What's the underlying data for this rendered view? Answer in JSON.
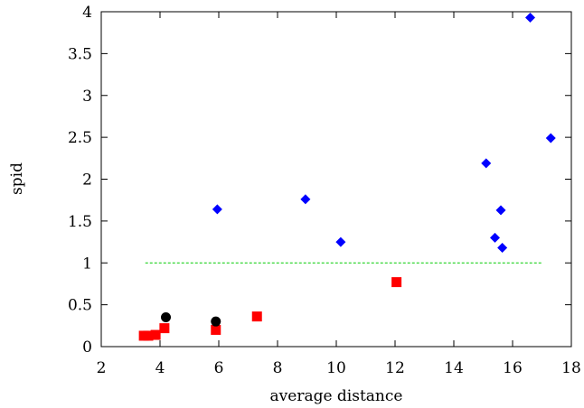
{
  "chart_data": {
    "type": "scatter",
    "xlabel": "average distance",
    "ylabel": "spid",
    "xlim": [
      2,
      18
    ],
    "ylim": [
      0,
      4
    ],
    "xticks": [
      2,
      4,
      6,
      8,
      10,
      12,
      14,
      16,
      18
    ],
    "yticks": [
      0,
      0.5,
      1,
      1.5,
      2,
      2.5,
      3,
      3.5,
      4
    ],
    "xtick_labels": [
      "2",
      "4",
      "6",
      "8",
      "10",
      "12",
      "14",
      "16",
      "18"
    ],
    "ytick_labels": [
      "0",
      "0.5",
      "1",
      "1.5",
      "2",
      "2.5",
      "3",
      "3.5",
      "4"
    ],
    "grid": false,
    "legend": "none",
    "series": [
      {
        "marker": "diamond",
        "color": "#0000ff",
        "points": [
          {
            "x": 5.95,
            "y": 1.64
          },
          {
            "x": 8.95,
            "y": 1.76
          },
          {
            "x": 10.15,
            "y": 1.25
          },
          {
            "x": 15.1,
            "y": 2.19
          },
          {
            "x": 15.4,
            "y": 1.3
          },
          {
            "x": 15.6,
            "y": 1.63
          },
          {
            "x": 15.65,
            "y": 1.18
          },
          {
            "x": 16.6,
            "y": 3.93
          },
          {
            "x": 17.3,
            "y": 2.49
          }
        ]
      },
      {
        "marker": "square",
        "color": "#ff0000",
        "points": [
          {
            "x": 3.45,
            "y": 0.13
          },
          {
            "x": 3.6,
            "y": 0.13
          },
          {
            "x": 3.85,
            "y": 0.14
          },
          {
            "x": 4.15,
            "y": 0.22
          },
          {
            "x": 5.9,
            "y": 0.2
          },
          {
            "x": 7.3,
            "y": 0.36
          },
          {
            "x": 12.05,
            "y": 0.77
          }
        ]
      },
      {
        "marker": "circle",
        "color": "#000000",
        "points": [
          {
            "x": 4.2,
            "y": 0.35
          },
          {
            "x": 5.9,
            "y": 0.3
          }
        ]
      }
    ],
    "reference_line": {
      "y": 1,
      "x_from": 3.5,
      "x_to": 17.0,
      "style": "dashed",
      "color": "#00cc00"
    }
  }
}
